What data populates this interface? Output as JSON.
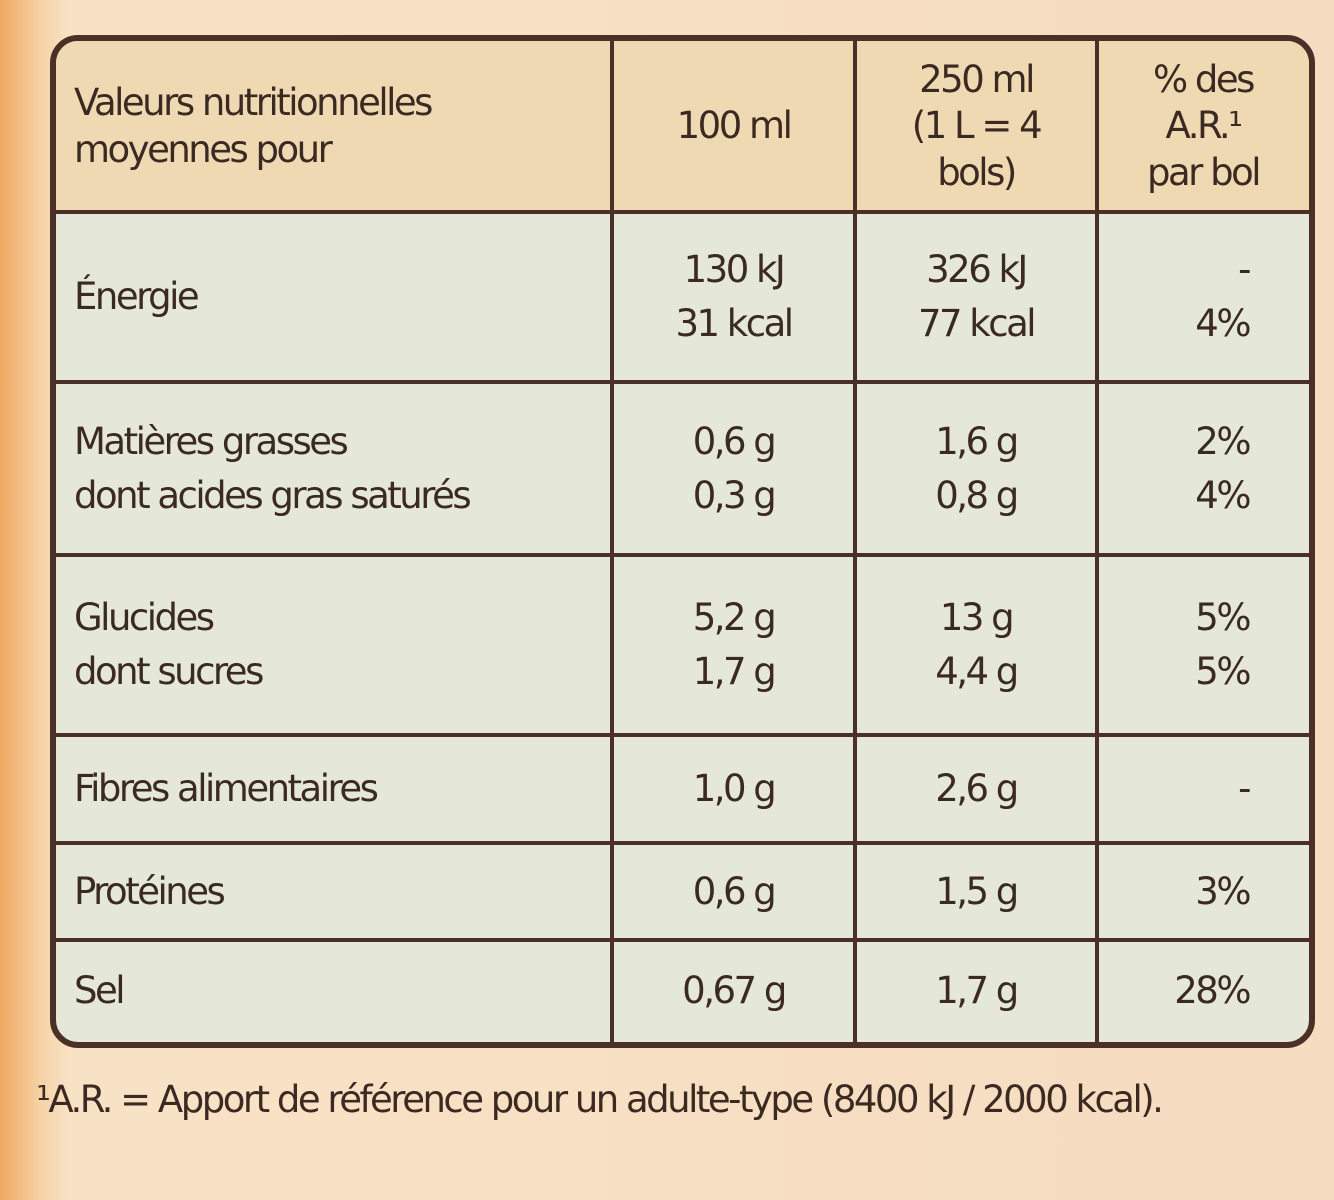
{
  "table": {
    "header": [
      [
        "Valeurs nutritionnelles",
        "moyennes pour"
      ],
      [
        "100 ml"
      ],
      [
        "250 ml",
        "(1 L = 4",
        "bols)"
      ],
      [
        "% des",
        "A.R.¹",
        "par bol"
      ]
    ],
    "rows": [
      [
        [
          "Énergie"
        ],
        [
          "130 kJ",
          "31 kcal"
        ],
        [
          "326 kJ",
          "77 kcal"
        ],
        [
          "-",
          "4%"
        ]
      ],
      [
        [
          "Matières grasses",
          "dont acides gras saturés"
        ],
        [
          "0,6 g",
          "0,3 g"
        ],
        [
          "1,6 g",
          "0,8 g"
        ],
        [
          "2%",
          "4%"
        ]
      ],
      [
        [
          "Glucides",
          "dont sucres"
        ],
        [
          "5,2 g",
          "1,7 g"
        ],
        [
          "13 g",
          "4,4 g"
        ],
        [
          "5%",
          "5%"
        ]
      ],
      [
        [
          "Fibres alimentaires"
        ],
        [
          "1,0 g"
        ],
        [
          "2,6 g"
        ],
        [
          "-"
        ]
      ],
      [
        [
          "Protéines"
        ],
        [
          "0,6 g"
        ],
        [
          "1,5 g"
        ],
        [
          "3%"
        ]
      ],
      [
        [
          "Sel"
        ],
        [
          "0,67 g"
        ],
        [
          "1,7 g"
        ],
        [
          "28%"
        ]
      ]
    ]
  },
  "footnote": "¹A.R. = Apport de référence pour un adulte-type (8400 kJ / 2000 kcal)."
}
